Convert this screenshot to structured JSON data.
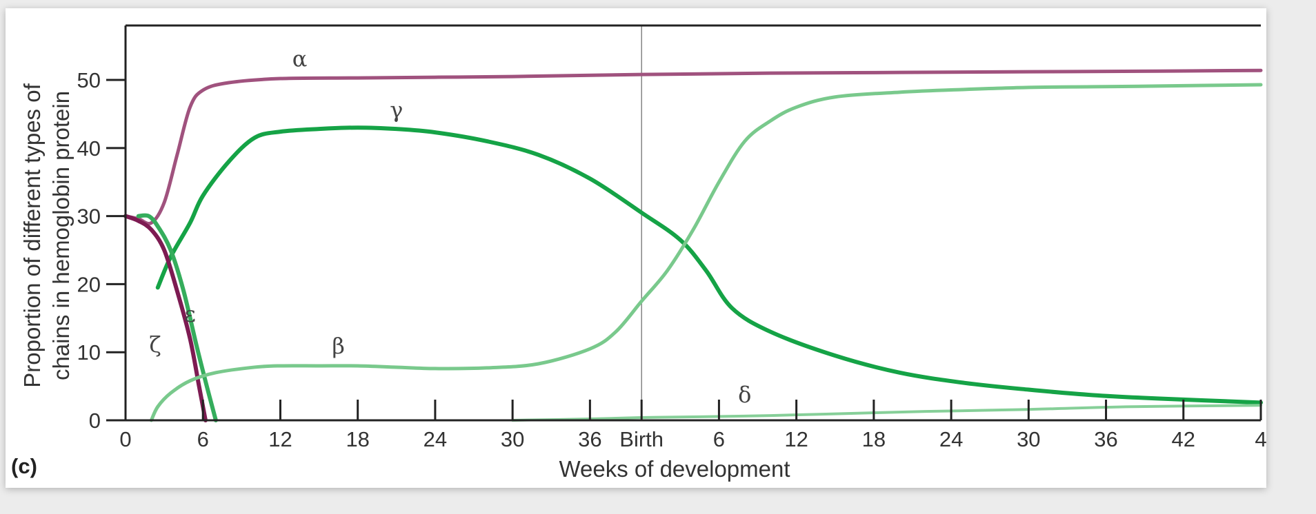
{
  "panel_label": "(c)",
  "colors": {
    "alpha": "#a0527e",
    "zeta": "#7d1b52",
    "gamma": "#15a346",
    "epsilon": "#35ad5c",
    "beta": "#79c98c",
    "delta": "#86cf98",
    "axis": "#222222"
  },
  "chart_data": {
    "type": "line",
    "xlabel": "Weeks of development",
    "ylabel_lines": [
      "Proportion of different types of",
      "chains in hemoglobin protein"
    ],
    "ylim": [
      0,
      58
    ],
    "y_ticks": [
      0,
      10,
      20,
      30,
      40,
      50
    ],
    "xlim": [
      0,
      88
    ],
    "x_ticks": [
      {
        "x": 0,
        "label": "0"
      },
      {
        "x": 6,
        "label": "6"
      },
      {
        "x": 12,
        "label": "12"
      },
      {
        "x": 18,
        "label": "18"
      },
      {
        "x": 24,
        "label": "24"
      },
      {
        "x": 30,
        "label": "30"
      },
      {
        "x": 36,
        "label": "36"
      },
      {
        "x": 40,
        "label": "Birth"
      },
      {
        "x": 46,
        "label": "6"
      },
      {
        "x": 52,
        "label": "12"
      },
      {
        "x": 58,
        "label": "18"
      },
      {
        "x": 64,
        "label": "24"
      },
      {
        "x": 70,
        "label": "30"
      },
      {
        "x": 76,
        "label": "36"
      },
      {
        "x": 82,
        "label": "42"
      },
      {
        "x": 88,
        "label": "4"
      }
    ],
    "birth_x": 40,
    "series": [
      {
        "name": "α",
        "color_key": "alpha",
        "width": 5,
        "label_pos": [
          13.5,
          52
        ],
        "points": [
          [
            0,
            30
          ],
          [
            1,
            29.6
          ],
          [
            2,
            29
          ],
          [
            3,
            32
          ],
          [
            4,
            39
          ],
          [
            5,
            46
          ],
          [
            6,
            48.5
          ],
          [
            8,
            49.6
          ],
          [
            12,
            50.2
          ],
          [
            18,
            50.3
          ],
          [
            24,
            50.4
          ],
          [
            30,
            50.5
          ],
          [
            40,
            50.8
          ],
          [
            50,
            51
          ],
          [
            60,
            51.1
          ],
          [
            70,
            51.2
          ],
          [
            80,
            51.3
          ],
          [
            88,
            51.4
          ]
        ]
      },
      {
        "name": "γ",
        "color_key": "gamma",
        "width": 6,
        "label_pos": [
          21,
          44.5
        ],
        "points": [
          [
            2.5,
            19.5
          ],
          [
            3.5,
            24
          ],
          [
            5,
            29
          ],
          [
            6,
            33
          ],
          [
            8,
            38
          ],
          [
            10,
            41.5
          ],
          [
            12,
            42.4
          ],
          [
            15,
            42.8
          ],
          [
            18,
            43
          ],
          [
            21,
            42.8
          ],
          [
            24,
            42.3
          ],
          [
            28,
            41
          ],
          [
            32,
            39
          ],
          [
            36,
            35.5
          ],
          [
            40,
            30.5
          ],
          [
            43,
            26.5
          ],
          [
            45,
            22
          ],
          [
            47,
            16.5
          ],
          [
            50,
            13
          ],
          [
            55,
            9.5
          ],
          [
            60,
            7
          ],
          [
            65,
            5.5
          ],
          [
            70,
            4.5
          ],
          [
            75,
            3.7
          ],
          [
            80,
            3.2
          ],
          [
            88,
            2.6
          ]
        ]
      },
      {
        "name": "ζ",
        "color_key": "zeta",
        "width": 6,
        "label_pos": [
          2.3,
          10
        ],
        "points": [
          [
            0,
            30
          ],
          [
            1,
            29.3
          ],
          [
            2,
            28
          ],
          [
            3,
            25
          ],
          [
            4,
            19
          ],
          [
            5,
            12
          ],
          [
            5.7,
            5
          ],
          [
            6.2,
            0
          ]
        ]
      },
      {
        "name": "ε",
        "color_key": "epsilon",
        "width": 6,
        "label_pos": [
          5,
          14.5
        ],
        "points": [
          [
            1,
            30
          ],
          [
            1.8,
            30
          ],
          [
            2.5,
            28.5
          ],
          [
            3.5,
            25
          ],
          [
            4.5,
            19
          ],
          [
            5.5,
            11
          ],
          [
            6.3,
            5
          ],
          [
            7,
            0
          ]
        ]
      },
      {
        "name": "β",
        "color_key": "beta",
        "width": 5,
        "label_pos": [
          16.5,
          9.8
        ],
        "points": [
          [
            2,
            0
          ],
          [
            2.5,
            2
          ],
          [
            3.5,
            4
          ],
          [
            5,
            5.8
          ],
          [
            7,
            7
          ],
          [
            10,
            7.8
          ],
          [
            12,
            8
          ],
          [
            15,
            8
          ],
          [
            18,
            8
          ],
          [
            21,
            7.8
          ],
          [
            24,
            7.6
          ],
          [
            28,
            7.7
          ],
          [
            32,
            8.3
          ],
          [
            36,
            10.5
          ],
          [
            38,
            13
          ],
          [
            40,
            17.5
          ],
          [
            42,
            22
          ],
          [
            44,
            28
          ],
          [
            46,
            35
          ],
          [
            48,
            41
          ],
          [
            50,
            44
          ],
          [
            52,
            46
          ],
          [
            55,
            47.5
          ],
          [
            60,
            48.2
          ],
          [
            65,
            48.6
          ],
          [
            70,
            48.9
          ],
          [
            75,
            49
          ],
          [
            80,
            49.1
          ],
          [
            88,
            49.3
          ]
        ]
      },
      {
        "name": "δ",
        "color_key": "delta",
        "width": 4,
        "label_pos": [
          48,
          2.7
        ],
        "points": [
          [
            30,
            0
          ],
          [
            36,
            0.2
          ],
          [
            40,
            0.4
          ],
          [
            44,
            0.5
          ],
          [
            50,
            0.7
          ],
          [
            56,
            1
          ],
          [
            62,
            1.3
          ],
          [
            70,
            1.6
          ],
          [
            78,
            2
          ],
          [
            88,
            2.2
          ]
        ]
      }
    ]
  }
}
